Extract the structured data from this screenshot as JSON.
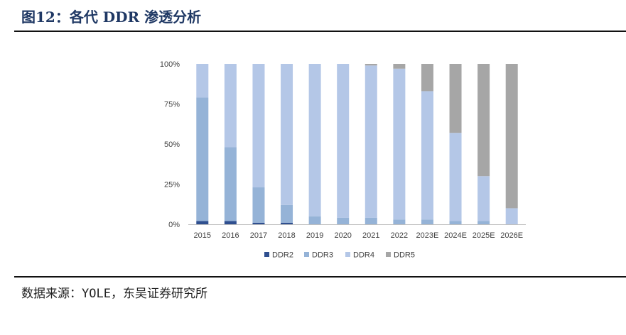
{
  "figure": {
    "title": "图12：各代 DDR 渗透分析",
    "source": "数据来源：YOLE，东吴证券研究所"
  },
  "chart_data": {
    "type": "bar",
    "stacked": true,
    "percent_stacked": true,
    "title": "",
    "xlabel": "",
    "ylabel": "",
    "ylim": [
      0,
      100
    ],
    "y_ticks": [
      "0%",
      "25%",
      "50%",
      "75%",
      "100%"
    ],
    "categories": [
      "2015",
      "2016",
      "2017",
      "2018",
      "2019",
      "2020",
      "2021",
      "2022",
      "2023E",
      "2024E",
      "2025E",
      "2026E"
    ],
    "series": [
      {
        "name": "DDR2",
        "color": "#2f4f8f",
        "values": [
          2,
          2,
          1,
          1,
          0,
          0,
          0,
          0,
          0,
          0,
          0,
          0
        ]
      },
      {
        "name": "DDR3",
        "color": "#95b3d7",
        "values": [
          77,
          46,
          22,
          11,
          5,
          4,
          4,
          3,
          3,
          2,
          2,
          0
        ]
      },
      {
        "name": "DDR4",
        "color": "#b4c7e7",
        "values": [
          21,
          52,
          77,
          88,
          95,
          96,
          95,
          94,
          80,
          55,
          28,
          10
        ]
      },
      {
        "name": "DDR5",
        "color": "#a6a6a6",
        "values": [
          0,
          0,
          0,
          0,
          0,
          0,
          1,
          3,
          17,
          43,
          70,
          90
        ]
      }
    ],
    "grid": false,
    "legend_position": "bottom"
  }
}
